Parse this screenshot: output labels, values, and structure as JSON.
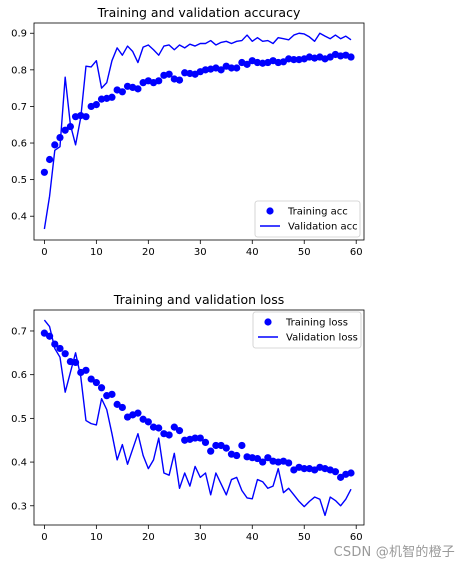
{
  "chart_data": [
    {
      "type": "scatter+line",
      "title": "Training and validation accuracy",
      "xlabel": "",
      "ylabel": "",
      "xlim": [
        -2,
        61.5
      ],
      "ylim": [
        0.335,
        0.928
      ],
      "xticks": [
        0,
        10,
        20,
        30,
        40,
        50,
        60
      ],
      "yticks": [
        0.4,
        0.5,
        0.6,
        0.7,
        0.8,
        0.9
      ],
      "legend_position": "lower-right",
      "series": [
        {
          "name": "Training acc",
          "style": "dots",
          "color": "#0000ff",
          "x": [
            0,
            1,
            2,
            3,
            4,
            5,
            6,
            7,
            8,
            9,
            10,
            11,
            12,
            13,
            14,
            15,
            16,
            17,
            18,
            19,
            20,
            21,
            22,
            23,
            24,
            25,
            26,
            27,
            28,
            29,
            30,
            31,
            32,
            33,
            34,
            35,
            36,
            37,
            38,
            39,
            40,
            41,
            42,
            43,
            44,
            45,
            46,
            47,
            48,
            49,
            50,
            51,
            52,
            53,
            54,
            55,
            56,
            57,
            58,
            59
          ],
          "y": [
            0.52,
            0.555,
            0.595,
            0.615,
            0.635,
            0.645,
            0.672,
            0.675,
            0.672,
            0.7,
            0.705,
            0.72,
            0.722,
            0.725,
            0.745,
            0.74,
            0.755,
            0.752,
            0.748,
            0.765,
            0.77,
            0.765,
            0.77,
            0.785,
            0.788,
            0.775,
            0.772,
            0.792,
            0.79,
            0.788,
            0.795,
            0.8,
            0.802,
            0.805,
            0.8,
            0.81,
            0.805,
            0.805,
            0.82,
            0.815,
            0.825,
            0.82,
            0.818,
            0.82,
            0.825,
            0.82,
            0.822,
            0.83,
            0.828,
            0.828,
            0.83,
            0.835,
            0.832,
            0.835,
            0.83,
            0.835,
            0.842,
            0.838,
            0.84,
            0.835
          ]
        },
        {
          "name": "Validation acc",
          "style": "line",
          "color": "#0000ff",
          "x": [
            0,
            1,
            2,
            3,
            4,
            5,
            6,
            7,
            8,
            9,
            10,
            11,
            12,
            13,
            14,
            15,
            16,
            17,
            18,
            19,
            20,
            21,
            22,
            23,
            24,
            25,
            26,
            27,
            28,
            29,
            30,
            31,
            32,
            33,
            34,
            35,
            36,
            37,
            38,
            39,
            40,
            41,
            42,
            43,
            44,
            45,
            46,
            47,
            48,
            49,
            50,
            51,
            52,
            53,
            54,
            55,
            56,
            57,
            58,
            59
          ],
          "y": [
            0.365,
            0.455,
            0.58,
            0.59,
            0.78,
            0.65,
            0.595,
            0.67,
            0.81,
            0.808,
            0.825,
            0.75,
            0.765,
            0.825,
            0.86,
            0.84,
            0.865,
            0.85,
            0.82,
            0.862,
            0.868,
            0.855,
            0.84,
            0.865,
            0.868,
            0.855,
            0.868,
            0.86,
            0.87,
            0.865,
            0.872,
            0.872,
            0.88,
            0.868,
            0.875,
            0.878,
            0.872,
            0.878,
            0.88,
            0.895,
            0.878,
            0.888,
            0.878,
            0.88,
            0.872,
            0.888,
            0.885,
            0.882,
            0.895,
            0.9,
            0.898,
            0.89,
            0.878,
            0.9,
            0.892,
            0.885,
            0.895,
            0.885,
            0.892,
            0.882
          ]
        }
      ]
    },
    {
      "type": "scatter+line",
      "title": "Training and validation loss",
      "xlabel": "",
      "ylabel": "",
      "xlim": [
        -2,
        61.5
      ],
      "ylim": [
        0.256,
        0.748
      ],
      "xticks": [
        0,
        10,
        20,
        30,
        40,
        50,
        60
      ],
      "yticks": [
        0.3,
        0.4,
        0.5,
        0.6,
        0.7
      ],
      "legend_position": "upper-right",
      "series": [
        {
          "name": "Training loss",
          "style": "dots",
          "color": "#0000ff",
          "x": [
            0,
            1,
            2,
            3,
            4,
            5,
            6,
            7,
            8,
            9,
            10,
            11,
            12,
            13,
            14,
            15,
            16,
            17,
            18,
            19,
            20,
            21,
            22,
            23,
            24,
            25,
            26,
            27,
            28,
            29,
            30,
            31,
            32,
            33,
            34,
            35,
            36,
            37,
            38,
            39,
            40,
            41,
            42,
            43,
            44,
            45,
            46,
            47,
            48,
            49,
            50,
            51,
            52,
            53,
            54,
            55,
            56,
            57,
            58,
            59
          ],
          "y": [
            0.695,
            0.688,
            0.67,
            0.66,
            0.648,
            0.63,
            0.628,
            0.605,
            0.61,
            0.59,
            0.582,
            0.57,
            0.552,
            0.555,
            0.532,
            0.525,
            0.503,
            0.508,
            0.512,
            0.498,
            0.492,
            0.48,
            0.478,
            0.465,
            0.462,
            0.48,
            0.472,
            0.45,
            0.452,
            0.455,
            0.455,
            0.445,
            0.425,
            0.438,
            0.438,
            0.432,
            0.418,
            0.415,
            0.438,
            0.412,
            0.41,
            0.408,
            0.4,
            0.41,
            0.402,
            0.4,
            0.402,
            0.398,
            0.382,
            0.388,
            0.385,
            0.385,
            0.382,
            0.388,
            0.385,
            0.382,
            0.378,
            0.365,
            0.372,
            0.375
          ]
        },
        {
          "name": "Validation loss",
          "style": "line",
          "color": "#0000ff",
          "x": [
            0,
            1,
            2,
            3,
            4,
            5,
            6,
            7,
            8,
            9,
            10,
            11,
            12,
            13,
            14,
            15,
            16,
            17,
            18,
            19,
            20,
            21,
            22,
            23,
            24,
            25,
            26,
            27,
            28,
            29,
            30,
            31,
            32,
            33,
            34,
            35,
            36,
            37,
            38,
            39,
            40,
            41,
            42,
            43,
            44,
            45,
            46,
            47,
            48,
            49,
            50,
            51,
            52,
            53,
            54,
            55,
            56,
            57,
            58,
            59
          ],
          "y": [
            0.725,
            0.71,
            0.66,
            0.64,
            0.56,
            0.605,
            0.65,
            0.595,
            0.495,
            0.488,
            0.485,
            0.545,
            0.52,
            0.465,
            0.405,
            0.44,
            0.395,
            0.43,
            0.465,
            0.415,
            0.385,
            0.405,
            0.455,
            0.375,
            0.37,
            0.42,
            0.34,
            0.375,
            0.345,
            0.39,
            0.365,
            0.375,
            0.325,
            0.375,
            0.35,
            0.325,
            0.36,
            0.365,
            0.335,
            0.318,
            0.316,
            0.36,
            0.355,
            0.34,
            0.345,
            0.385,
            0.33,
            0.34,
            0.325,
            0.31,
            0.298,
            0.31,
            0.32,
            0.315,
            0.278,
            0.32,
            0.312,
            0.3,
            0.315,
            0.338
          ]
        }
      ]
    }
  ],
  "watermark": "CSDN @机智的橙子"
}
